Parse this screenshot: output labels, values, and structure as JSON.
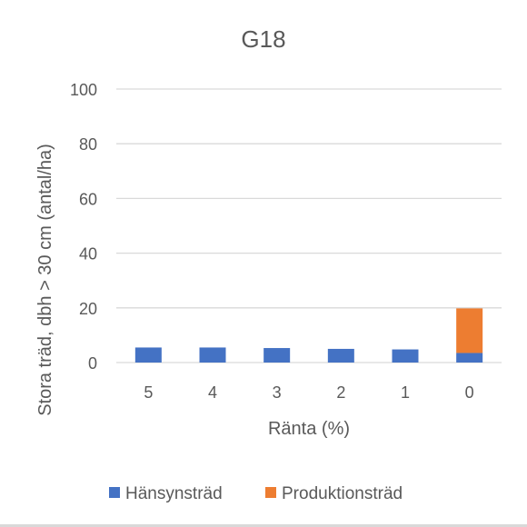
{
  "chart_data": {
    "type": "bar",
    "stacked": true,
    "title": "G18",
    "xlabel": "Ränta (%)",
    "ylabel": "Stora träd, dbh > 30 cm (antal/ha)",
    "categories": [
      "5",
      "4",
      "3",
      "2",
      "1",
      "0"
    ],
    "series": [
      {
        "name": "Hänsynsträd",
        "color": "#4472c4",
        "values": [
          5.5,
          5.5,
          5.3,
          5.0,
          4.8,
          3.5
        ]
      },
      {
        "name": "Produktionsträd",
        "color": "#ed7d31",
        "values": [
          0,
          0,
          0,
          0,
          0,
          16.3
        ]
      }
    ],
    "ylim": [
      0,
      100
    ],
    "yticks": [
      0,
      20,
      40,
      60,
      80,
      100
    ],
    "grid": true,
    "legend_position": "bottom",
    "colors": {
      "text": "#595959",
      "grid": "#d9d9d9"
    }
  }
}
